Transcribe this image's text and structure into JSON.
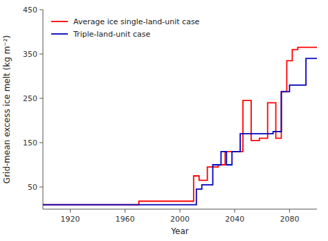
{
  "chart_data": {
    "type": "line",
    "xlabel": "Year",
    "ylabel": "Grid-mean excess ice melt (kg m⁻²)",
    "xlim": [
      1900,
      2100
    ],
    "ylim": [
      0,
      450
    ],
    "xticks": [
      1920,
      1960,
      2000,
      2040,
      2080
    ],
    "yticks": [
      50,
      150,
      250,
      350,
      450
    ],
    "grid": false,
    "legend": "upper left",
    "series": [
      {
        "name": "Average ice single-land-unit case",
        "color": "#ff0000",
        "x": [
          1900,
          1970,
          1970,
          2010,
          2010,
          2014,
          2014,
          2020,
          2020,
          2028,
          2028,
          2033,
          2033,
          2038,
          2038,
          2046,
          2046,
          2052,
          2052,
          2058,
          2058,
          2064,
          2064,
          2070,
          2070,
          2074,
          2074,
          2078,
          2078,
          2082,
          2082,
          2086,
          2086,
          2092,
          2092,
          2100
        ],
        "values": [
          10,
          10,
          18,
          18,
          75,
          75,
          65,
          65,
          95,
          95,
          100,
          100,
          130,
          130,
          130,
          130,
          245,
          245,
          155,
          155,
          160,
          160,
          240,
          240,
          160,
          160,
          265,
          265,
          335,
          335,
          360,
          360,
          365,
          365,
          365,
          365
        ]
      },
      {
        "name": "Triple-land-unit case",
        "color": "#0000bb",
        "x": [
          1900,
          1975,
          1975,
          2012,
          2012,
          2016,
          2016,
          2024,
          2024,
          2030,
          2030,
          2034,
          2034,
          2038,
          2038,
          2044,
          2044,
          2060,
          2060,
          2068,
          2068,
          2074,
          2074,
          2080,
          2080,
          2086,
          2086,
          2092,
          2092,
          2100
        ],
        "values": [
          10,
          10,
          10,
          10,
          45,
          45,
          55,
          55,
          100,
          100,
          130,
          130,
          100,
          100,
          130,
          130,
          170,
          170,
          170,
          170,
          175,
          175,
          265,
          265,
          280,
          280,
          280,
          280,
          340,
          340
        ]
      }
    ]
  }
}
